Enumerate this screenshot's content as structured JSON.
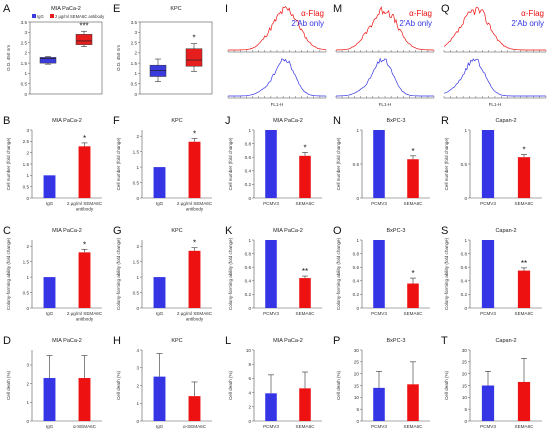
{
  "chart_data": [
    {
      "id": "A",
      "type": "boxplot",
      "title": "MIA PaCa-2",
      "ylabel": "O.D. 450 nm",
      "legend": [
        "IgG",
        "2 µg/ml SEMA6C antibody"
      ],
      "ylim": [
        0,
        3.5
      ],
      "yticks": [
        0,
        0.5,
        1,
        1.5,
        2,
        2.5,
        3,
        3.5
      ],
      "categories": [
        "IgG",
        "2 µg/ml SEMA6C antibody"
      ],
      "boxes": [
        {
          "min": 1.45,
          "q1": 1.5,
          "median": 1.72,
          "q3": 1.78,
          "max": 1.82
        },
        {
          "min": 2.3,
          "q1": 2.4,
          "median": 2.58,
          "q3": 2.9,
          "max": 3.05
        }
      ],
      "significance": [
        null,
        "***"
      ],
      "colors": [
        "#3b3bdd",
        "#e61e1e"
      ]
    },
    {
      "id": "E",
      "type": "boxplot",
      "title": "KPC",
      "ylabel": "O.D. 450 nm",
      "ylim": [
        0,
        3.5
      ],
      "yticks": [
        0,
        0.5,
        1,
        1.5,
        2,
        2.5,
        3,
        3.5
      ],
      "categories": [
        "IgG",
        "2 µg/ml SEMA6C antibody"
      ],
      "boxes": [
        {
          "min": 0.6,
          "q1": 0.85,
          "median": 1.15,
          "q3": 1.4,
          "max": 1.7
        },
        {
          "min": 1.1,
          "q1": 1.35,
          "median": 1.65,
          "q3": 2.2,
          "max": 2.45
        }
      ],
      "significance": [
        null,
        "*"
      ],
      "colors": [
        "#3b3bdd",
        "#e61e1e"
      ]
    },
    {
      "id": "B",
      "type": "bar",
      "title": "MIA PaCa-2",
      "ylabel": "Cell number (fold change)",
      "categories": [
        "IgG",
        "2 µg/ml SEMA6C antibody"
      ],
      "values": [
        1.0,
        2.28
      ],
      "errors": [
        0,
        0.15
      ],
      "ylim": [
        0,
        3
      ],
      "significance": [
        null,
        "*"
      ],
      "colors": [
        "#3535e6",
        "#ee1111"
      ]
    },
    {
      "id": "F",
      "type": "bar",
      "title": "KPC",
      "ylabel": "Cell number (fold change)",
      "categories": [
        "IgG",
        "2 µg/ml SEMA6C antibody"
      ],
      "values": [
        1.0,
        1.82
      ],
      "errors": [
        0,
        0.1
      ],
      "ylim": [
        0,
        2.2
      ],
      "significance": [
        null,
        "*"
      ],
      "colors": [
        "#3535e6",
        "#ee1111"
      ]
    },
    {
      "id": "J",
      "type": "bar",
      "title": "MIA PaCa-2",
      "ylabel": "Cell number (fold change)",
      "categories": [
        "PCMV3",
        "SEMA6C"
      ],
      "values": [
        1.0,
        0.62
      ],
      "errors": [
        0,
        0.05
      ],
      "ylim": [
        0,
        1.0
      ],
      "significance": [
        null,
        "*"
      ],
      "colors": [
        "#3535e6",
        "#ee1111"
      ]
    },
    {
      "id": "N",
      "type": "bar",
      "title": "BxPC-3",
      "ylabel": "Cell number (fold change)",
      "categories": [
        "PCMV3",
        "SEMA6C"
      ],
      "values": [
        1.0,
        0.57
      ],
      "errors": [
        0,
        0.05
      ],
      "ylim": [
        0,
        1.0
      ],
      "yticks": [
        0,
        0.5,
        1
      ],
      "significance": [
        null,
        "*"
      ],
      "colors": [
        "#3535e6",
        "#ee1111"
      ]
    },
    {
      "id": "R",
      "type": "bar",
      "title": "Capan-2",
      "ylabel": "Cell number (fold change)",
      "categories": [
        "PCMV3",
        "SEMA6C"
      ],
      "values": [
        1.0,
        0.6
      ],
      "errors": [
        0,
        0.04
      ],
      "ylim": [
        0,
        1.0
      ],
      "yticks": [
        0,
        0.5,
        1
      ],
      "significance": [
        null,
        "*"
      ],
      "colors": [
        "#3535e6",
        "#ee1111"
      ]
    },
    {
      "id": "C",
      "type": "bar",
      "title": "MIA PaCa-2",
      "ylabel": "Colony-forming ability (fold change)",
      "categories": [
        "IgG",
        "2 µg/ml SEMA6C antibody"
      ],
      "values": [
        1.0,
        1.8
      ],
      "errors": [
        0,
        0.1
      ],
      "ylim": [
        0,
        2.2
      ],
      "significance": [
        null,
        "*"
      ],
      "colors": [
        "#3535e6",
        "#ee1111"
      ]
    },
    {
      "id": "G",
      "type": "bar",
      "title": "KPC",
      "ylabel": "Colony-forming ability (fold change)",
      "categories": [
        "IgG",
        "2 µg/ml SEMA6C antibody"
      ],
      "values": [
        1.0,
        1.85
      ],
      "errors": [
        0,
        0.1
      ],
      "ylim": [
        0,
        2.2
      ],
      "significance": [
        null,
        "*"
      ],
      "colors": [
        "#3535e6",
        "#ee1111"
      ]
    },
    {
      "id": "K",
      "type": "bar",
      "title": "MIA PaCa-2",
      "ylabel": "Colony-forming ability (fold change)",
      "categories": [
        "PCMV3",
        "SEMA6C"
      ],
      "values": [
        1.0,
        0.44
      ],
      "errors": [
        0,
        0.03
      ],
      "ylim": [
        0,
        1.0
      ],
      "significance": [
        null,
        "**"
      ],
      "colors": [
        "#3535e6",
        "#ee1111"
      ]
    },
    {
      "id": "O",
      "type": "bar",
      "title": "BxPC-3",
      "ylabel": "Colony-forming ability (fold change)",
      "categories": [
        "PCMV3",
        "SEMA6C"
      ],
      "values": [
        1.0,
        0.36
      ],
      "errors": [
        0,
        0.08
      ],
      "ylim": [
        0,
        1.0
      ],
      "significance": [
        null,
        "*"
      ],
      "colors": [
        "#3535e6",
        "#ee1111"
      ]
    },
    {
      "id": "S",
      "type": "bar",
      "title": "Capan-2",
      "ylabel": "Colony-forming ability (fold change)",
      "categories": [
        "PCMV3",
        "SEMA6C"
      ],
      "values": [
        1.0,
        0.55
      ],
      "errors": [
        0,
        0.04
      ],
      "ylim": [
        0,
        1.0
      ],
      "significance": [
        null,
        "**"
      ],
      "colors": [
        "#3535e6",
        "#ee1111"
      ]
    },
    {
      "id": "D",
      "type": "bar",
      "title": "MIA PaCa-2",
      "ylabel": "Cell death (%)",
      "categories": [
        "IgG",
        "α-SEMA6C"
      ],
      "values": [
        2.3,
        2.3
      ],
      "errors": [
        1.2,
        1.2
      ],
      "ylim": [
        0,
        3.8
      ],
      "significance": [
        null,
        null
      ],
      "colors": [
        "#3535e6",
        "#ee1111"
      ]
    },
    {
      "id": "H",
      "type": "bar",
      "title": "KPC",
      "ylabel": "Cell death (%)",
      "categories": [
        "IgG",
        "α-SEMA6C"
      ],
      "values": [
        2.5,
        1.4
      ],
      "errors": [
        1.3,
        0.8
      ],
      "ylim": [
        0,
        4.0
      ],
      "significance": [
        null,
        null
      ],
      "colors": [
        "#3535e6",
        "#ee1111"
      ]
    },
    {
      "id": "L",
      "type": "bar",
      "title": "MIA PaCa-2",
      "ylabel": "Cell death (%)",
      "categories": [
        "PCMV3",
        "SEMA6C"
      ],
      "values": [
        3.9,
        4.6
      ],
      "errors": [
        2.6,
        2.3
      ],
      "ylim": [
        0,
        10
      ],
      "significance": [
        null,
        null
      ],
      "colors": [
        "#3535e6",
        "#ee1111"
      ]
    },
    {
      "id": "P",
      "type": "bar",
      "title": "BxPC-3",
      "ylabel": "Cell death (%)",
      "categories": [
        "PCMV3",
        "SEMA6C"
      ],
      "values": [
        14,
        15.5
      ],
      "errors": [
        7,
        9.5
      ],
      "ylim": [
        0,
        30
      ],
      "significance": [
        null,
        null
      ],
      "colors": [
        "#3535e6",
        "#ee1111"
      ]
    },
    {
      "id": "T",
      "type": "bar",
      "title": "Capan-2",
      "ylabel": "Cell death (%)",
      "categories": [
        "PCMV3",
        "SEMA6C"
      ],
      "values": [
        15,
        16.5
      ],
      "errors": [
        6,
        10
      ],
      "ylim": [
        0,
        30
      ],
      "significance": [
        null,
        null
      ],
      "colors": [
        "#3535e6",
        "#ee1111"
      ]
    },
    {
      "id": "I",
      "type": "histogram",
      "xlabel": "FL1-H",
      "legend": [
        "α-Flag",
        "2'Ab only"
      ],
      "colors": [
        "#ee1111",
        "#3535e6"
      ],
      "peak_x": 0.6
    },
    {
      "id": "M",
      "type": "histogram",
      "xlabel": "FL1-H",
      "legend": [
        "α-Flag",
        "2'Ab only"
      ],
      "colors": [
        "#ee1111",
        "#3535e6"
      ],
      "peak_x": 0.5
    },
    {
      "id": "Q",
      "type": "histogram",
      "xlabel": "FL1-H",
      "legend": [
        "α-Flag",
        "2'Ab only"
      ],
      "colors": [
        "#ee1111",
        "#3535e6"
      ],
      "peak_x": 0.32
    }
  ]
}
